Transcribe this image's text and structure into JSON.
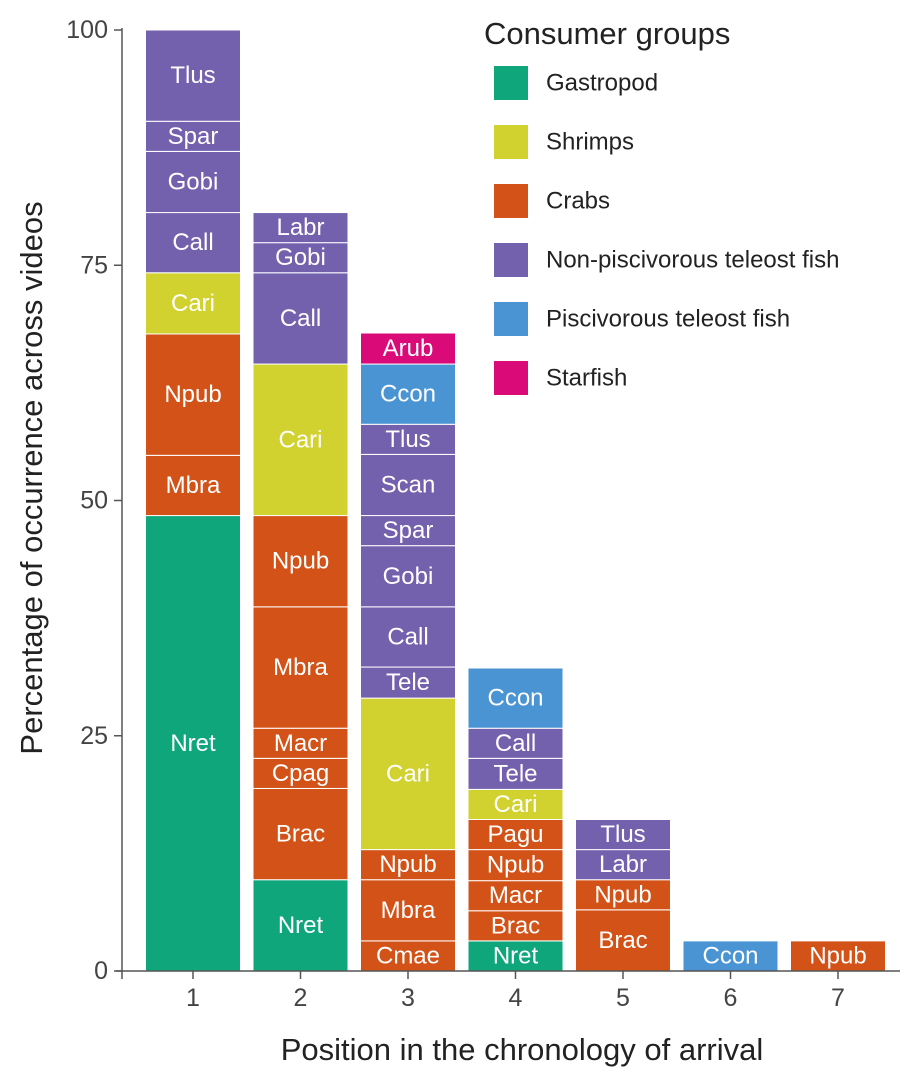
{
  "chart_data": {
    "type": "bar",
    "stacked": true,
    "xlabel": "Position in the chronology of arrival",
    "ylabel": "Percentage of occurrence across videos",
    "ylim": [
      0,
      100
    ],
    "yticks": [
      0,
      25,
      50,
      75,
      100
    ],
    "categories": [
      "1",
      "2",
      "3",
      "4",
      "5",
      "6",
      "7"
    ],
    "legend": {
      "title": "Consumer groups",
      "placement": "top-right",
      "entries": [
        {
          "name": "Gastropod",
          "color": "#0fa67b"
        },
        {
          "name": "Shrimps",
          "color": "#d1d22f"
        },
        {
          "name": "Crabs",
          "color": "#d35218"
        },
        {
          "name": "Non-piscivorous teleost fish",
          "color": "#7461ad"
        },
        {
          "name": "Piscivorous teleost fish",
          "color": "#4a94d4"
        },
        {
          "name": "Starfish",
          "color": "#da0b78"
        }
      ]
    },
    "bars": [
      {
        "category": "1",
        "segments": [
          {
            "label": "Nret",
            "group": "Gastropod",
            "value": 48.4
          },
          {
            "label": "Mbra",
            "group": "Crabs",
            "value": 6.4
          },
          {
            "label": "Npub",
            "group": "Crabs",
            "value": 12.9
          },
          {
            "label": "Cari",
            "group": "Shrimps",
            "value": 6.5
          },
          {
            "label": "Call",
            "group": "Non-piscivorous teleost fish",
            "value": 6.4
          },
          {
            "label": "Gobi",
            "group": "Non-piscivorous teleost fish",
            "value": 6.5
          },
          {
            "label": "Spar",
            "group": "Non-piscivorous teleost fish",
            "value": 3.2
          },
          {
            "label": "Tlus",
            "group": "Non-piscivorous teleost fish",
            "value": 9.7
          }
        ]
      },
      {
        "category": "2",
        "segments": [
          {
            "label": "Nret",
            "group": "Gastropod",
            "value": 9.7
          },
          {
            "label": "Brac",
            "group": "Crabs",
            "value": 9.7
          },
          {
            "label": "Cpag",
            "group": "Crabs",
            "value": 3.2
          },
          {
            "label": "Macr",
            "group": "Crabs",
            "value": 3.2
          },
          {
            "label": "Mbra",
            "group": "Crabs",
            "value": 12.9
          },
          {
            "label": "Npub",
            "group": "Crabs",
            "value": 9.7
          },
          {
            "label": "Cari",
            "group": "Shrimps",
            "value": 16.1
          },
          {
            "label": "Call",
            "group": "Non-piscivorous teleost fish",
            "value": 9.7
          },
          {
            "label": "Gobi",
            "group": "Non-piscivorous teleost fish",
            "value": 3.2
          },
          {
            "label": "Labr",
            "group": "Non-piscivorous teleost fish",
            "value": 3.2
          }
        ]
      },
      {
        "category": "3",
        "segments": [
          {
            "label": "Cmae",
            "group": "Crabs",
            "value": 3.2
          },
          {
            "label": "Mbra",
            "group": "Crabs",
            "value": 6.5
          },
          {
            "label": "Npub",
            "group": "Crabs",
            "value": 3.2
          },
          {
            "label": "Cari",
            "group": "Shrimps",
            "value": 16.1
          },
          {
            "label": "Tele",
            "group": "Non-piscivorous teleost fish",
            "value": 3.3
          },
          {
            "label": "Call",
            "group": "Non-piscivorous teleost fish",
            "value": 6.4
          },
          {
            "label": "Gobi",
            "group": "Non-piscivorous teleost fish",
            "value": 6.5
          },
          {
            "label": "Spar",
            "group": "Non-piscivorous teleost fish",
            "value": 3.2
          },
          {
            "label": "Scan",
            "group": "Non-piscivorous teleost fish",
            "value": 6.5
          },
          {
            "label": "Tlus",
            "group": "Non-piscivorous teleost fish",
            "value": 3.2
          },
          {
            "label": "Ccon",
            "group": "Piscivorous teleost fish",
            "value": 6.4
          },
          {
            "label": "Arub",
            "group": "Starfish",
            "value": 3.3
          }
        ]
      },
      {
        "category": "4",
        "segments": [
          {
            "label": "Nret",
            "group": "Gastropod",
            "value": 3.2
          },
          {
            "label": "Brac",
            "group": "Crabs",
            "value": 3.2
          },
          {
            "label": "Macr",
            "group": "Crabs",
            "value": 3.2
          },
          {
            "label": "Npub",
            "group": "Crabs",
            "value": 3.3
          },
          {
            "label": "Pagu",
            "group": "Crabs",
            "value": 3.2
          },
          {
            "label": "Cari",
            "group": "Shrimps",
            "value": 3.2
          },
          {
            "label": "Tele",
            "group": "Non-piscivorous teleost fish",
            "value": 3.3
          },
          {
            "label": "Call",
            "group": "Non-piscivorous teleost fish",
            "value": 3.2
          },
          {
            "label": "Ccon",
            "group": "Piscivorous teleost fish",
            "value": 6.4
          }
        ]
      },
      {
        "category": "5",
        "segments": [
          {
            "label": "Brac",
            "group": "Crabs",
            "value": 6.5
          },
          {
            "label": "Npub",
            "group": "Crabs",
            "value": 3.2
          },
          {
            "label": "Labr",
            "group": "Non-piscivorous teleost fish",
            "value": 3.2
          },
          {
            "label": "Tlus",
            "group": "Non-piscivorous teleost fish",
            "value": 3.2
          }
        ]
      },
      {
        "category": "6",
        "segments": [
          {
            "label": "Ccon",
            "group": "Piscivorous teleost fish",
            "value": 3.2
          }
        ]
      },
      {
        "category": "7",
        "segments": [
          {
            "label": "Npub",
            "group": "Crabs",
            "value": 3.2
          }
        ]
      }
    ]
  }
}
